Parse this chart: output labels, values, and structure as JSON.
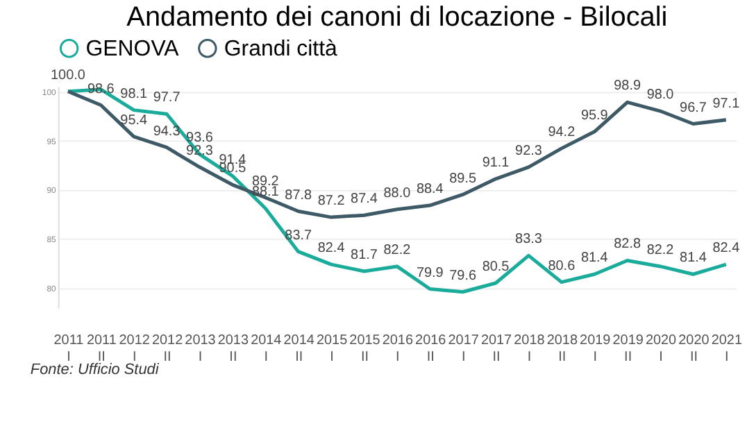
{
  "chart_data": {
    "type": "line",
    "title": "Andamento dei canoni di locazione - Bilocali",
    "categories": [
      "2011 I",
      "2011 II",
      "2012 I",
      "2012 II",
      "2013 I",
      "2013 II",
      "2014 I",
      "2014 II",
      "2015 I",
      "2015 II",
      "2016 I",
      "2016 II",
      "2017 I",
      "2017 II",
      "2018 I",
      "2018 II",
      "2019 I",
      "2019 II",
      "2020 I",
      "2020 II",
      "2021 I"
    ],
    "series": [
      {
        "name": "GENOVA",
        "color": "#1aab9b",
        "values": [
          100.0,
          100.2,
          98.1,
          97.7,
          93.6,
          91.4,
          88.1,
          83.7,
          82.4,
          81.7,
          82.2,
          79.9,
          79.6,
          80.5,
          83.3,
          80.6,
          81.4,
          82.8,
          82.2,
          81.4,
          82.4
        ],
        "value_labels": [
          "100.0",
          null,
          "98.1",
          "97.7",
          "93.6",
          "91.4",
          "88.1",
          "83.7",
          "82.4",
          "81.7",
          "82.2",
          "79.9",
          "79.6",
          "80.5",
          "83.3",
          "80.6",
          "81.4",
          "82.8",
          "82.2",
          "81.4",
          "82.4"
        ]
      },
      {
        "name": "Grandi città",
        "color": "#3e5a66",
        "values": [
          100.0,
          98.6,
          95.4,
          94.3,
          92.3,
          90.5,
          89.2,
          87.8,
          87.2,
          87.4,
          88.0,
          88.4,
          89.5,
          91.1,
          92.3,
          94.2,
          95.9,
          98.9,
          98.0,
          96.7,
          97.1
        ],
        "value_labels": [
          null,
          "98.6",
          "95.4",
          "94.3",
          "92.3",
          "90.5",
          "89.2",
          "87.8",
          "87.2",
          "87.4",
          "88.0",
          "88.4",
          "89.5",
          "91.1",
          "92.3",
          "94.2",
          "95.9",
          "98.9",
          "98.0",
          "96.7",
          "97.1"
        ]
      }
    ],
    "ylim": [
      78,
      100.5
    ],
    "yticks": [
      80,
      85,
      90,
      95,
      100
    ],
    "grid": "y",
    "legend": "top",
    "marker": "none",
    "line_style": "solid",
    "annotations": [
      "Fonte: Ufficio Studi"
    ]
  }
}
